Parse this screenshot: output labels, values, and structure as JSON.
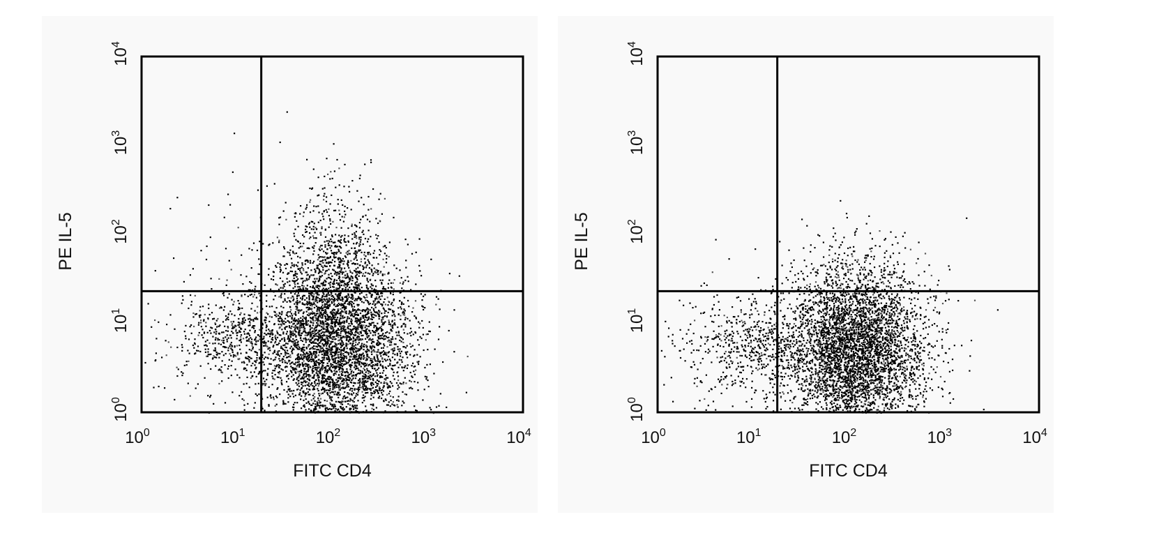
{
  "chart_data": [
    {
      "type": "scatter",
      "title": "",
      "xlabel": "FITC CD4",
      "ylabel": "PE IL-5",
      "xscale": "log",
      "yscale": "log",
      "xlim": [
        1,
        10000
      ],
      "ylim": [
        1,
        10000
      ],
      "x_ticks": [
        "10",
        "10",
        "10",
        "10",
        "10"
      ],
      "x_tick_exponents": [
        "0",
        "1",
        "2",
        "3",
        "4"
      ],
      "y_ticks": [
        "10",
        "10",
        "10",
        "10",
        "10"
      ],
      "y_tick_exponents": [
        "0",
        "1",
        "2",
        "3",
        "4"
      ],
      "quadrant_gate": {
        "x": 18,
        "y": 23
      },
      "grid": false,
      "populations": [
        {
          "name": "",
          "center": [
            110,
            6.5
          ],
          "spread": [
            0.42,
            0.5
          ],
          "count": 3200
        },
        {
          "name": "",
          "center": [
            100,
            3
          ],
          "spread": [
            0.35,
            0.55
          ],
          "count": 900
        },
        {
          "name": "",
          "center": [
            9,
            7
          ],
          "spread": [
            0.3,
            0.22
          ],
          "count": 420
        },
        {
          "name": "",
          "center": [
            100,
            45
          ],
          "spread": [
            0.28,
            0.5
          ],
          "count": 650
        },
        {
          "name": "",
          "center": [
            8,
            40
          ],
          "spread": [
            0.35,
            0.7
          ],
          "count": 55
        },
        {
          "name": "",
          "center": [
            3,
            3
          ],
          "spread": [
            0.4,
            0.5
          ],
          "count": 60
        }
      ]
    },
    {
      "type": "scatter",
      "title": "",
      "xlabel": "FITC CD4",
      "ylabel": "PE IL-5",
      "xscale": "log",
      "yscale": "log",
      "xlim": [
        1,
        10000
      ],
      "ylim": [
        1,
        10000
      ],
      "x_ticks": [
        "10",
        "10",
        "10",
        "10",
        "10"
      ],
      "x_tick_exponents": [
        "0",
        "1",
        "2",
        "3",
        "4"
      ],
      "y_ticks": [
        "10",
        "10",
        "10",
        "10",
        "10"
      ],
      "y_tick_exponents": [
        "0",
        "1",
        "2",
        "3",
        "4"
      ],
      "quadrant_gate": {
        "x": 18,
        "y": 23
      },
      "grid": false,
      "populations": [
        {
          "name": "",
          "center": [
            120,
            6
          ],
          "spread": [
            0.38,
            0.45
          ],
          "count": 3600
        },
        {
          "name": "",
          "center": [
            110,
            2.5
          ],
          "spread": [
            0.3,
            0.5
          ],
          "count": 900
        },
        {
          "name": "",
          "center": [
            10,
            6
          ],
          "spread": [
            0.3,
            0.25
          ],
          "count": 450
        },
        {
          "name": "",
          "center": [
            4,
            3.5
          ],
          "spread": [
            0.35,
            0.4
          ],
          "count": 120
        },
        {
          "name": "",
          "center": [
            12,
            60
          ],
          "spread": [
            0.4,
            0.5
          ],
          "count": 12
        }
      ]
    }
  ]
}
